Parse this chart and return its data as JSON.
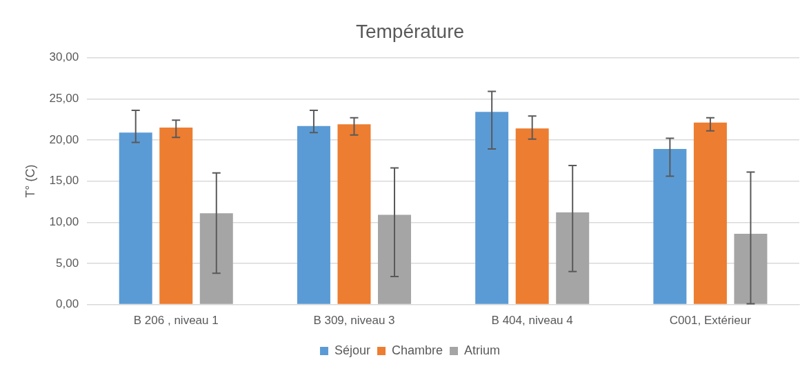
{
  "chart_data": {
    "type": "bar",
    "title": "Température",
    "ylabel": "T° (C)",
    "categories": [
      "B 206 , niveau 1",
      "B 309, niveau 3",
      "B 404, niveau 4",
      "C001, Extérieur"
    ],
    "series": [
      {
        "name": "Séjour",
        "color": "#5b9bd5",
        "values": [
          20.9,
          21.7,
          23.4,
          18.9
        ],
        "errors": [
          [
            19.7,
            23.6
          ],
          [
            20.9,
            23.6
          ],
          [
            18.9,
            25.9
          ],
          [
            15.6,
            20.2
          ]
        ]
      },
      {
        "name": "Chambre",
        "color": "#ed7d31",
        "values": [
          21.5,
          21.9,
          21.4,
          22.1
        ],
        "errors": [
          [
            20.3,
            22.4
          ],
          [
            20.6,
            22.7
          ],
          [
            20.1,
            22.9
          ],
          [
            21.1,
            22.7
          ]
        ]
      },
      {
        "name": "Atrium",
        "color": "#a5a5a5",
        "values": [
          11.1,
          10.9,
          11.2,
          8.6
        ],
        "errors": [
          [
            3.8,
            16.0
          ],
          [
            3.4,
            16.6
          ],
          [
            4.0,
            16.9
          ],
          [
            0.1,
            16.1
          ]
        ]
      }
    ],
    "ylim": [
      0,
      30
    ],
    "yticks": [
      {
        "value": 0,
        "label": "0,00"
      },
      {
        "value": 5,
        "label": "5,00"
      },
      {
        "value": 10,
        "label": "10,00"
      },
      {
        "value": 15,
        "label": "15,00"
      },
      {
        "value": 20,
        "label": "20,00"
      },
      {
        "value": 25,
        "label": "25,00"
      },
      {
        "value": 30,
        "label": "30,00"
      }
    ],
    "grid": "y",
    "legend": "bottom"
  }
}
